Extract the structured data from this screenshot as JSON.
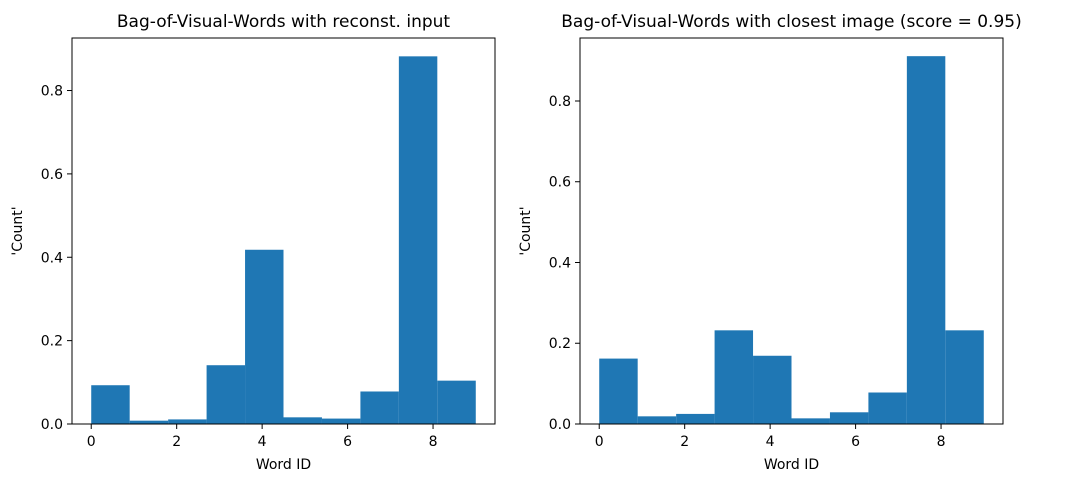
{
  "chart_data": [
    {
      "type": "bar",
      "title": "Bag-of-Visual-Words with reconst. input",
      "xlabel": "Word ID",
      "ylabel": "'Count'",
      "bin_edges": [
        0,
        0.9,
        1.8,
        2.7,
        3.6,
        4.5,
        5.4,
        6.3,
        7.2,
        8.1,
        9.0
      ],
      "values": [
        0.093,
        0.008,
        0.011,
        0.141,
        0.418,
        0.016,
        0.013,
        0.078,
        0.882,
        0.104
      ],
      "xlim": [
        -0.45,
        9.45
      ],
      "ylim": [
        0,
        0.926
      ],
      "xticks": [
        "0",
        "2",
        "4",
        "6",
        "8"
      ],
      "yticks": [
        "0.0",
        "0.2",
        "0.4",
        "0.6",
        "0.8"
      ],
      "color": "#1f77b4",
      "grid": false
    },
    {
      "type": "bar",
      "title": "Bag-of-Visual-Words with closest image (score = 0.95)",
      "xlabel": "Word ID",
      "ylabel": "'Count'",
      "bin_edges": [
        0,
        0.9,
        1.8,
        2.7,
        3.6,
        4.5,
        5.4,
        6.3,
        7.2,
        8.1,
        9.0
      ],
      "values": [
        0.162,
        0.019,
        0.025,
        0.232,
        0.169,
        0.014,
        0.029,
        0.078,
        0.911,
        0.232
      ],
      "xlim": [
        -0.45,
        9.45
      ],
      "ylim": [
        0,
        0.956
      ],
      "xticks": [
        "0",
        "2",
        "4",
        "6",
        "8"
      ],
      "yticks": [
        "0.0",
        "0.2",
        "0.4",
        "0.6",
        "0.8"
      ],
      "color": "#1f77b4",
      "grid": false
    }
  ]
}
